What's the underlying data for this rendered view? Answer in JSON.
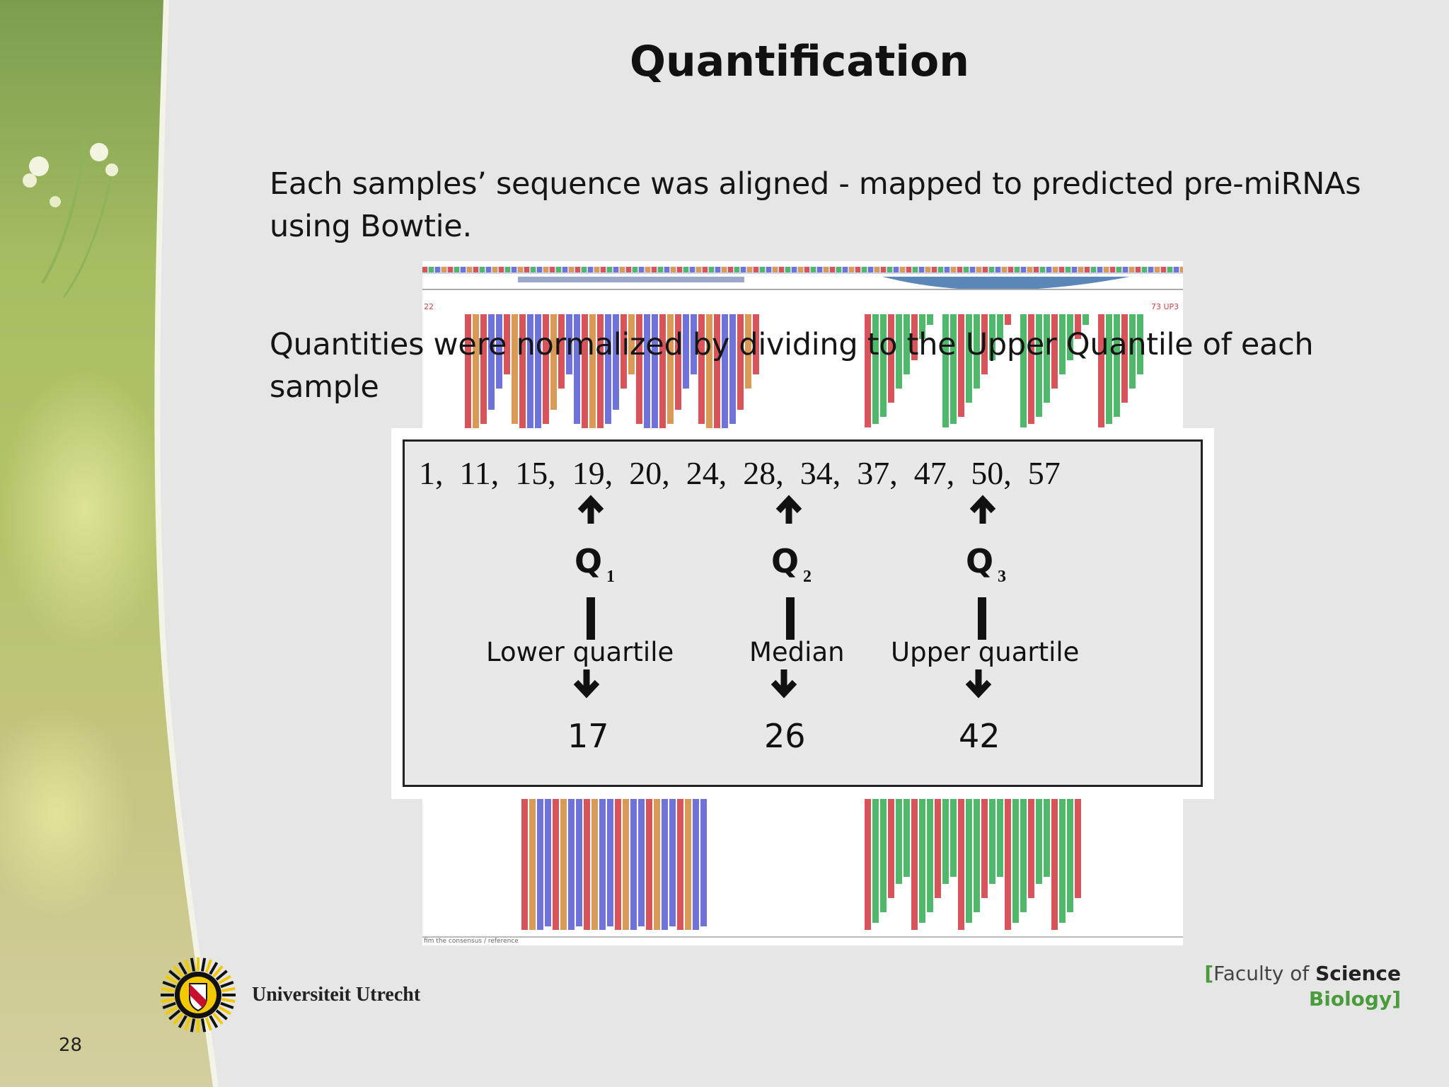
{
  "slide": {
    "title": "Quantification",
    "paragraph_1": "Each samples’ sequence was aligned - mapped to predicted pre-miRNAs using Bowtie.",
    "paragraph_2": "Quantities were normalized by dividing to the Upper Quantile of each sample",
    "page_number": "28"
  },
  "quartile_figure": {
    "sequence": "1,  11,  15,  19,  20,  24,  28,  34,  37,  47,  50,  57",
    "quartiles": [
      {
        "q": "Q",
        "sub": "1",
        "label": "Lower quartile",
        "value": "17"
      },
      {
        "q": "Q",
        "sub": "2",
        "label": "Median",
        "value": "26"
      },
      {
        "q": "Q",
        "sub": "3",
        "label": "Upper quartile",
        "value": "42"
      }
    ]
  },
  "alignment_image": {
    "left_label": "22",
    "right_label": "73 UP3",
    "footer_caption": "fim the consensus / reference"
  },
  "footer": {
    "university": "Universiteit Utrecht",
    "faculty_open": "[",
    "faculty_of": "Faculty of ",
    "faculty_science": "Science",
    "faculty_dept": "Biology",
    "faculty_close": "]"
  },
  "colors": {
    "background": "#e6e6e7",
    "brand_green": "#4a9b3c",
    "read_red": "#d9545a",
    "read_green": "#4fb86a",
    "read_blue": "#6f72d8",
    "read_orange": "#d89a54"
  }
}
